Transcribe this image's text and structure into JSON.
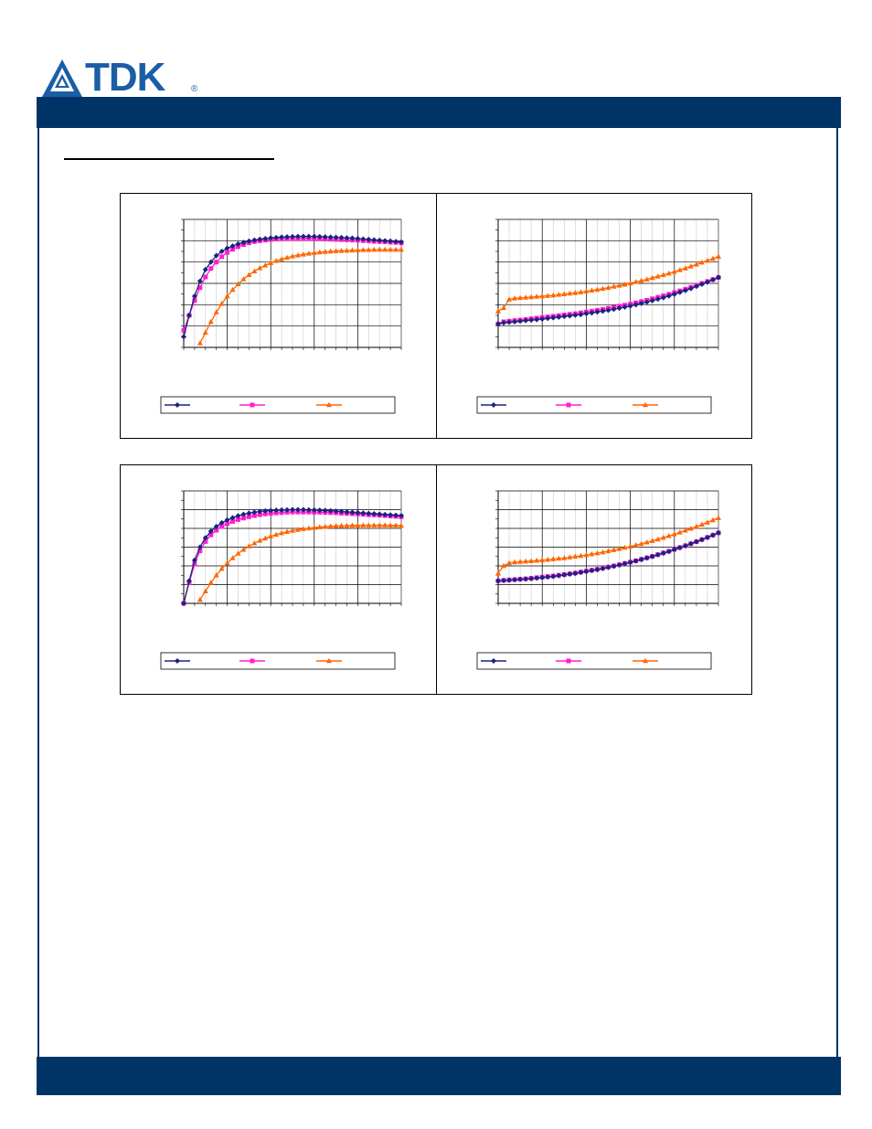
{
  "logo": {
    "brand": "TDK",
    "registered": "®"
  },
  "colors": {
    "header": "#003366",
    "series1": "#1a237e",
    "series2": "#ff1fce",
    "series3": "#ff6600"
  },
  "chart_data": [
    {
      "type": "line",
      "x": [
        0,
        1,
        2,
        3,
        4,
        5,
        6,
        7,
        8,
        9,
        10,
        11,
        12,
        13,
        14,
        15,
        16,
        17,
        18,
        19,
        20,
        21,
        22,
        23,
        24,
        25,
        26,
        27,
        28,
        29,
        30,
        31,
        32,
        33,
        34,
        35,
        36,
        37,
        38,
        39,
        40
      ],
      "series": [
        {
          "values": [
            0.5,
            1.5,
            2.4,
            3.1,
            3.65,
            4.0,
            4.3,
            4.5,
            4.65,
            4.75,
            4.85,
            4.92,
            4.98,
            5.03,
            5.07,
            5.1,
            5.13,
            5.15,
            5.17,
            5.18,
            5.19,
            5.2,
            5.2,
            5.2,
            5.2,
            5.19,
            5.18,
            5.17,
            5.16,
            5.15,
            5.13,
            5.12,
            5.1,
            5.08,
            5.06,
            5.04,
            5.02,
            5.0,
            4.98,
            4.96,
            4.94
          ]
        },
        {
          "values": [
            0.8,
            1.5,
            2.2,
            2.8,
            3.3,
            3.7,
            4.0,
            4.25,
            4.45,
            4.6,
            4.72,
            4.82,
            4.9,
            4.96,
            5.0,
            5.03,
            5.06,
            5.08,
            5.09,
            5.1,
            5.1,
            5.1,
            5.1,
            5.1,
            5.09,
            5.09,
            5.08,
            5.07,
            5.06,
            5.05,
            5.04,
            5.03,
            5.02,
            5.0,
            4.99,
            4.97,
            4.96,
            4.95,
            4.93,
            4.92,
            4.9
          ]
        },
        {
          "values": [
            null,
            null,
            null,
            0.2,
            0.7,
            1.2,
            1.65,
            2.05,
            2.4,
            2.7,
            2.97,
            3.2,
            3.4,
            3.57,
            3.72,
            3.85,
            3.96,
            4.06,
            4.14,
            4.21,
            4.27,
            4.32,
            4.36,
            4.4,
            4.43,
            4.46,
            4.48,
            4.5,
            4.52,
            4.53,
            4.54,
            4.55,
            4.56,
            4.57,
            4.57,
            4.58,
            4.58,
            4.58,
            4.58,
            4.58,
            4.58
          ]
        }
      ],
      "ylim": [
        0,
        6
      ],
      "xlim": [
        0,
        40
      ],
      "grid": true,
      "legend": "bottom"
    },
    {
      "type": "line",
      "x": [
        0,
        1,
        2,
        3,
        4,
        5,
        6,
        7,
        8,
        9,
        10,
        11,
        12,
        13,
        14,
        15,
        16,
        17,
        18,
        19,
        20,
        21,
        22,
        23,
        24,
        25,
        26,
        27,
        28,
        29,
        30,
        31,
        32,
        33,
        34,
        35,
        36,
        37,
        38,
        39,
        40
      ],
      "series": [
        {
          "values": [
            1.1,
            1.15,
            1.18,
            1.2,
            1.23,
            1.26,
            1.28,
            1.3,
            1.33,
            1.36,
            1.39,
            1.42,
            1.45,
            1.48,
            1.51,
            1.54,
            1.58,
            1.62,
            1.66,
            1.7,
            1.74,
            1.79,
            1.84,
            1.89,
            1.94,
            2.0,
            2.06,
            2.12,
            2.19,
            2.26,
            2.33,
            2.41,
            2.49,
            2.58,
            2.67,
            2.76,
            2.86,
            2.96,
            3.06,
            3.17,
            3.28
          ]
        },
        {
          "values": [
            1.1,
            1.2,
            1.23,
            1.26,
            1.28,
            1.31,
            1.34,
            1.37,
            1.4,
            1.43,
            1.46,
            1.49,
            1.52,
            1.55,
            1.58,
            1.62,
            1.66,
            1.7,
            1.74,
            1.78,
            1.83,
            1.88,
            1.93,
            1.98,
            2.03,
            2.09,
            2.15,
            2.21,
            2.28,
            2.35,
            2.42,
            2.49,
            2.57,
            2.65,
            2.73,
            2.82,
            2.91,
            3.0,
            3.09,
            3.18,
            3.28
          ]
        },
        {
          "values": [
            1.7,
            1.85,
            2.25,
            2.3,
            2.32,
            2.34,
            2.36,
            2.38,
            2.4,
            2.42,
            2.44,
            2.47,
            2.5,
            2.53,
            2.56,
            2.59,
            2.63,
            2.67,
            2.71,
            2.75,
            2.8,
            2.85,
            2.9,
            2.95,
            3.01,
            3.07,
            3.13,
            3.19,
            3.26,
            3.33,
            3.4,
            3.47,
            3.55,
            3.63,
            3.71,
            3.8,
            3.89,
            3.98,
            4.07,
            4.16,
            4.26
          ]
        }
      ],
      "ylim": [
        0,
        6
      ],
      "xlim": [
        0,
        40
      ],
      "grid": true,
      "legend": "bottom"
    },
    {
      "type": "line",
      "x": [
        0,
        1,
        2,
        3,
        4,
        5,
        6,
        7,
        8,
        9,
        10,
        11,
        12,
        13,
        14,
        15,
        16,
        17,
        18,
        19,
        20,
        21,
        22,
        23,
        24,
        25,
        26,
        27,
        28,
        29,
        30,
        31,
        32,
        33,
        34,
        35,
        36,
        37,
        38,
        39,
        40
      ],
      "series": [
        {
          "values": [
            0.0,
            1.2,
            2.3,
            3.0,
            3.5,
            3.85,
            4.1,
            4.3,
            4.45,
            4.57,
            4.67,
            4.75,
            4.81,
            4.86,
            4.9,
            4.93,
            4.95,
            4.97,
            4.98,
            4.99,
            5.0,
            5.0,
            5.0,
            4.99,
            4.98,
            4.97,
            4.96,
            4.94,
            4.92,
            4.9,
            4.88,
            4.86,
            4.84,
            4.82,
            4.8,
            4.78,
            4.76,
            4.74,
            4.72,
            4.7,
            4.68
          ]
        },
        {
          "values": [
            0.0,
            1.1,
            2.1,
            2.8,
            3.3,
            3.65,
            3.9,
            4.1,
            4.25,
            4.37,
            4.47,
            4.55,
            4.62,
            4.68,
            4.73,
            4.77,
            4.8,
            4.82,
            4.84,
            4.86,
            4.87,
            4.87,
            4.87,
            4.87,
            4.86,
            4.86,
            4.85,
            4.84,
            4.83,
            4.81,
            4.8,
            4.78,
            4.77,
            4.75,
            4.73,
            4.72,
            4.7,
            4.68,
            4.66,
            4.64,
            4.62
          ]
        },
        {
          "values": [
            null,
            null,
            null,
            0.2,
            0.65,
            1.1,
            1.5,
            1.85,
            2.15,
            2.42,
            2.66,
            2.87,
            3.05,
            3.21,
            3.35,
            3.47,
            3.58,
            3.67,
            3.75,
            3.82,
            3.88,
            3.93,
            3.97,
            4.01,
            4.04,
            4.07,
            4.09,
            4.11,
            4.13,
            4.14,
            4.15,
            4.16,
            4.16,
            4.17,
            4.17,
            4.17,
            4.17,
            4.17,
            4.16,
            4.16,
            4.15
          ]
        }
      ],
      "ylim": [
        0,
        6
      ],
      "xlim": [
        0,
        40
      ],
      "grid": true,
      "legend": "bottom"
    },
    {
      "type": "line",
      "x": [
        0,
        1,
        2,
        3,
        4,
        5,
        6,
        7,
        8,
        9,
        10,
        11,
        12,
        13,
        14,
        15,
        16,
        17,
        18,
        19,
        20,
        21,
        22,
        23,
        24,
        25,
        26,
        27,
        28,
        29,
        30,
        31,
        32,
        33,
        34,
        35,
        36,
        37,
        38,
        39,
        40
      ],
      "series": [
        {
          "values": [
            1.2,
            1.22,
            1.24,
            1.26,
            1.28,
            1.3,
            1.32,
            1.35,
            1.38,
            1.41,
            1.44,
            1.48,
            1.52,
            1.56,
            1.6,
            1.65,
            1.7,
            1.75,
            1.8,
            1.86,
            1.92,
            1.98,
            2.05,
            2.12,
            2.19,
            2.26,
            2.34,
            2.42,
            2.5,
            2.59,
            2.68,
            2.77,
            2.87,
            2.97,
            3.07,
            3.18,
            3.29,
            3.4,
            3.52,
            3.64,
            3.76
          ]
        },
        {
          "values": [
            1.2,
            1.23,
            1.25,
            1.27,
            1.29,
            1.31,
            1.34,
            1.37,
            1.4,
            1.43,
            1.46,
            1.5,
            1.54,
            1.58,
            1.62,
            1.67,
            1.72,
            1.77,
            1.82,
            1.88,
            1.94,
            2.0,
            2.06,
            2.13,
            2.2,
            2.27,
            2.35,
            2.43,
            2.51,
            2.6,
            2.69,
            2.78,
            2.88,
            2.98,
            3.08,
            3.18,
            3.29,
            3.4,
            3.52,
            3.64,
            3.76
          ]
        },
        {
          "values": [
            1.6,
            2.0,
            2.15,
            2.2,
            2.22,
            2.24,
            2.26,
            2.28,
            2.3,
            2.33,
            2.36,
            2.39,
            2.42,
            2.46,
            2.5,
            2.54,
            2.58,
            2.63,
            2.68,
            2.73,
            2.79,
            2.85,
            2.91,
            2.97,
            3.04,
            3.11,
            3.18,
            3.26,
            3.34,
            3.42,
            3.51,
            3.6,
            3.69,
            3.79,
            3.89,
            3.99,
            4.1,
            4.21,
            4.32,
            4.44,
            4.56
          ]
        }
      ],
      "ylim": [
        0,
        6
      ],
      "xlim": [
        0,
        40
      ],
      "grid": true,
      "legend": "bottom"
    }
  ]
}
